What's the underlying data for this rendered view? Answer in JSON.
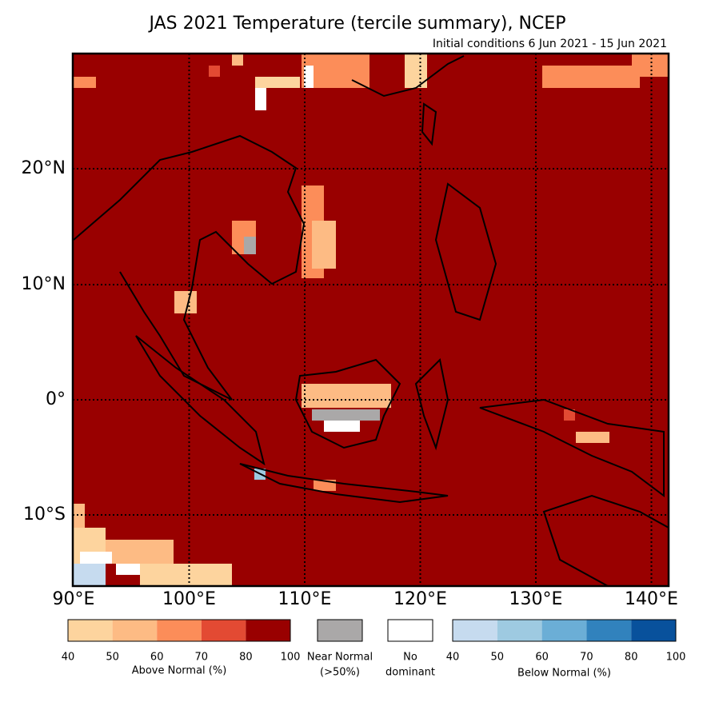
{
  "header": {
    "title": "JAS 2021 Temperature (tercile summary), NCEP",
    "subtitle": "Initial conditions 6 Jun 2021 - 15 Jun 2021"
  },
  "map": {
    "fill_color": "#990000",
    "lon_labels": [
      "90°E",
      "100°E",
      "110°E",
      "120°E",
      "130°E",
      "140°E"
    ],
    "lat_labels": [
      "20°N",
      "10°N",
      "0°",
      "10°S"
    ]
  },
  "legend": {
    "above": {
      "label": "Above Normal (%)",
      "ticks": [
        40,
        50,
        60,
        70,
        80,
        100
      ],
      "colors": [
        "#fdd49e",
        "#fdbb84",
        "#fc8d59",
        "#e34a33",
        "#990000"
      ]
    },
    "near": {
      "label": "Near Normal",
      "sublabel": "(>50%)",
      "color": "#aaa8a8"
    },
    "none": {
      "label": "No",
      "sublabel": "dominant",
      "color": "#ffffff"
    },
    "below": {
      "label": "Below Normal (%)",
      "ticks": [
        40,
        50,
        60,
        70,
        80,
        100
      ],
      "colors": [
        "#c6dbef",
        "#9ecae1",
        "#6baed6",
        "#3182bd",
        "#08519c"
      ]
    }
  }
}
